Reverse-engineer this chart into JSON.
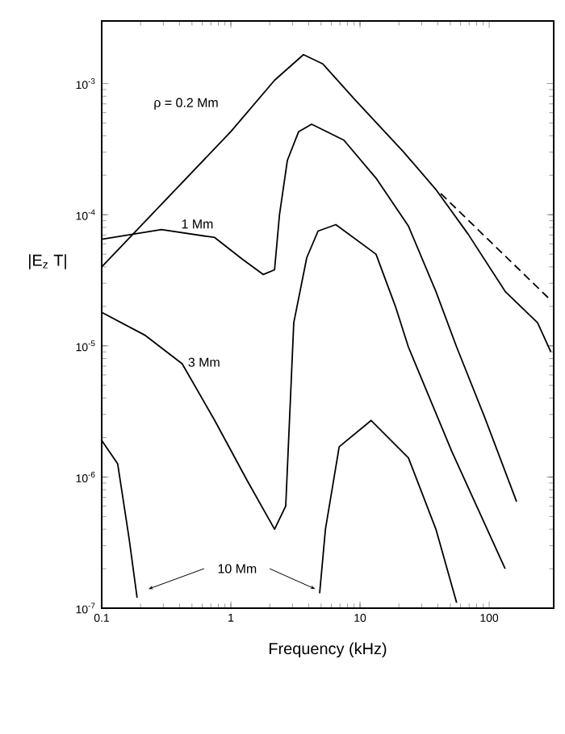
{
  "chart_data": {
    "type": "line",
    "xlabel": "Frequency (kHz)",
    "ylabel": "|E$_{z}$ T|",
    "log": "xy",
    "xlim": [
      0.1,
      316
    ],
    "ylim": [
      1e-07,
      0.003
    ],
    "xticks": [
      0.1,
      1,
      10,
      100
    ],
    "yticks": [
      {
        "value": 1e-07,
        "label": "10$^{-7}$"
      },
      {
        "value": 1e-06,
        "label": "10$^{-6}$"
      },
      {
        "value": 1e-05,
        "label": "10$^{-5}$"
      },
      {
        "value": 0.0001,
        "label": "10$^{-4}$"
      },
      {
        "value": 0.001,
        "label": "10$^{-3}$"
      }
    ],
    "series": [
      {
        "name": "ρ = 0.2 Mm",
        "color": "#000000",
        "line_style": "solid",
        "x": [
          0.1,
          1,
          2.18,
          3.65,
          5.16,
          9.17,
          21.8,
          39,
          68.8,
          133,
          237,
          300
        ],
        "values": [
          4e-05,
          0.00043,
          0.00106,
          0.00166,
          0.00141,
          0.00075,
          0.0003,
          0.000154,
          7.1e-05,
          2.6e-05,
          1.5e-05,
          9e-06
        ]
      },
      {
        "color": "#000000",
        "line_style": "dashed",
        "x": [
          42.2,
          290
        ],
        "values": [
          0.000145,
          2.3e-05
        ]
      },
      {
        "name": "1 Mm",
        "color": "#000000",
        "line_style": "solid",
        "x": [
          0.1,
          0.29,
          0.75,
          1.22,
          1.78,
          2.18,
          2.38,
          2.74,
          3.35,
          4.22,
          7.5,
          13.3,
          23.7,
          38.7,
          56,
          91.7,
          163
        ],
        "values": [
          6.5e-05,
          7.7e-05,
          6.7e-05,
          4.6e-05,
          3.5e-05,
          3.8e-05,
          0.0001,
          0.00026,
          0.00043,
          0.00049,
          0.00037,
          0.00019,
          8.2e-05,
          2.6e-05,
          9.8e-06,
          2.9e-06,
          6.5e-07
        ]
      },
      {
        "name": "3 Mm",
        "color": "#000000",
        "line_style": "solid",
        "x": [
          0.1,
          0.218,
          0.42,
          0.75,
          1.33,
          2.18,
          2.66,
          3.07,
          3.87,
          4.73,
          6.5,
          13.3,
          18.8,
          23.7,
          51.6,
          133
        ],
        "values": [
          1.8e-05,
          1.2e-05,
          7.3e-06,
          2.7e-06,
          9.5e-07,
          4e-07,
          6e-07,
          1.5e-05,
          4.7e-05,
          7.5e-05,
          8.4e-05,
          5e-05,
          2e-05,
          9.8e-06,
          1.55e-06,
          2e-07
        ]
      },
      {
        "name": "10 Mm",
        "color": "#000000",
        "line_style": "solid",
        "x": [
          0.1,
          0.133,
          0.163,
          0.188,
          1,
          4.87,
          5.4,
          6.9,
          12.2,
          23.7,
          38.7,
          56
        ],
        "values": [
          1.9e-06,
          1.26e-06,
          3.4e-07,
          1.2e-07,
          null,
          1.3e-07,
          4e-07,
          1.7e-06,
          2.7e-06,
          1.4e-06,
          4e-07,
          1.1e-07
        ]
      }
    ]
  }
}
